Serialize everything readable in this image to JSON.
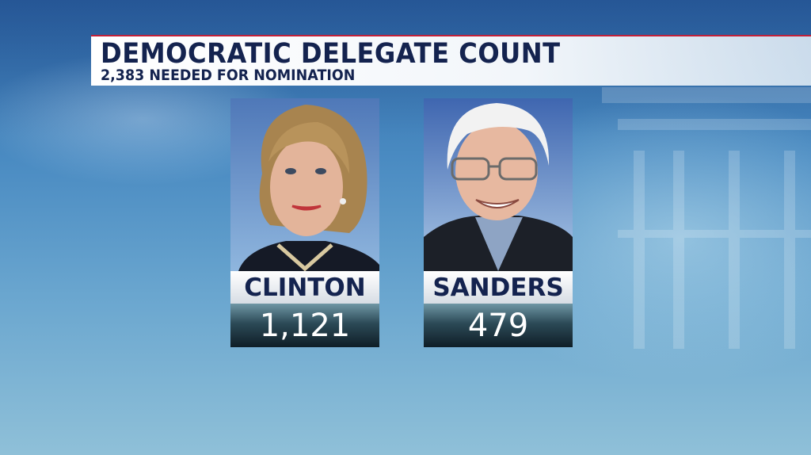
{
  "header": {
    "title": "DEMOCRATIC DELEGATE COUNT",
    "subtitle": "2,383 NEEDED FOR NOMINATION"
  },
  "candidates": [
    {
      "name": "CLINTON",
      "delegates": "1,121"
    },
    {
      "name": "SANDERS",
      "delegates": "479"
    }
  ],
  "colors": {
    "title_text": "#14234f",
    "accent_line": "#c0203a",
    "background": "#4a8bc2"
  }
}
